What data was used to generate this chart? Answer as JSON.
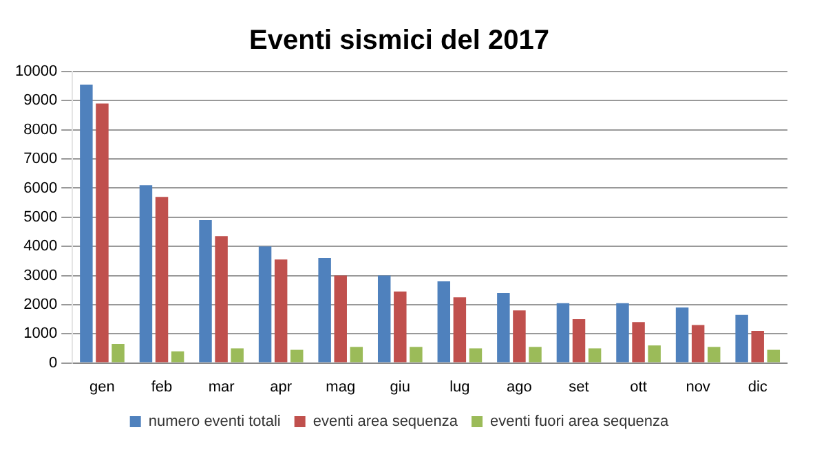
{
  "chart_data": {
    "type": "bar",
    "title": "Eventi sismici del 2017",
    "categories": [
      "gen",
      "feb",
      "mar",
      "apr",
      "mag",
      "giu",
      "lug",
      "ago",
      "set",
      "ott",
      "nov",
      "dic"
    ],
    "series": [
      {
        "name": "numero eventi totali",
        "color": "#4f81bd",
        "values": [
          9550,
          6100,
          4900,
          4000,
          3600,
          3000,
          2800,
          2400,
          2050,
          2050,
          1900,
          1650
        ]
      },
      {
        "name": "eventi area sequenza",
        "color": "#c0504d",
        "values": [
          8900,
          5700,
          4350,
          3550,
          3000,
          2450,
          2250,
          1800,
          1500,
          1400,
          1300,
          1100
        ]
      },
      {
        "name": "eventi fuori area sequenza",
        "color": "#9bbb59",
        "values": [
          650,
          400,
          500,
          450,
          550,
          550,
          500,
          550,
          500,
          600,
          550,
          450
        ]
      }
    ],
    "ylim": [
      0,
      10000
    ],
    "yticks": [
      0,
      1000,
      2000,
      3000,
      4000,
      5000,
      6000,
      7000,
      8000,
      9000,
      10000
    ],
    "grid": "y",
    "legend": "bottom"
  }
}
